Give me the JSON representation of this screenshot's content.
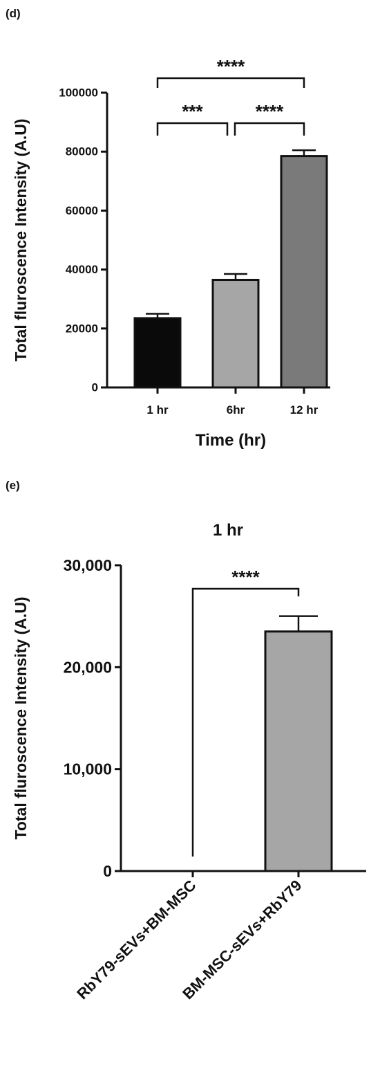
{
  "chart_data": [
    {
      "panel_label": "(d)",
      "type": "bar",
      "title": "",
      "xlabel": "Time (hr)",
      "ylabel": "Total fluroscence Intensity (A.U)",
      "categories": [
        "1 hr",
        "6hr",
        "12 hr"
      ],
      "values": [
        23500,
        36500,
        78500
      ],
      "errors": [
        1500,
        2000,
        2000
      ],
      "bar_colors": [
        "#0a0a0a",
        "#a6a6a6",
        "#7a7a7a"
      ],
      "ylim": [
        0,
        100000
      ],
      "yticks": [
        0,
        20000,
        40000,
        60000,
        80000,
        100000
      ],
      "ytick_labels": [
        "0",
        "20000",
        "40000",
        "60000",
        "80000",
        "100000"
      ],
      "significance": [
        {
          "from": 0,
          "to": 2,
          "label": "****"
        },
        {
          "from": 0,
          "to": 1,
          "label": "***"
        },
        {
          "from": 1,
          "to": 2,
          "label": "****"
        }
      ],
      "grid": false,
      "legend": "none"
    },
    {
      "panel_label": "(e)",
      "type": "bar",
      "title": "1 hr",
      "xlabel": "",
      "ylabel": "Total fluroscence Intensity (A.U)",
      "categories": [
        "RbY79-sEVs+BM-MSC",
        "BM-MSC-sEVs+RbY79"
      ],
      "values": [
        0,
        23500
      ],
      "errors": [
        0,
        1500
      ],
      "bar_colors": [
        "#a6a6a6",
        "#a6a6a6"
      ],
      "ylim": [
        0,
        30000
      ],
      "yticks": [
        0,
        10000,
        20000,
        30000
      ],
      "ytick_labels": [
        "0",
        "10,000",
        "20,000",
        "30,000"
      ],
      "significance": [
        {
          "from": 0,
          "to": 1,
          "label": "****"
        }
      ],
      "grid": false,
      "legend": "none"
    }
  ]
}
